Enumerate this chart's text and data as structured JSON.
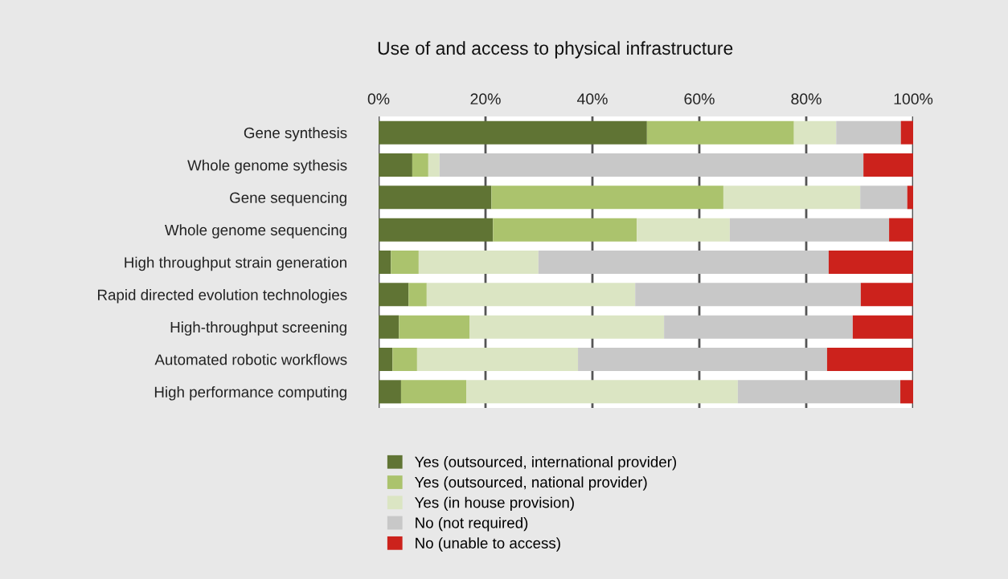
{
  "chart_data": {
    "type": "bar",
    "orientation": "horizontal",
    "stacked": true,
    "title": "Use of and access to physical infrastructure",
    "categories": [
      "Gene synthesis",
      "Whole genome sythesis",
      "Gene sequencing",
      "Whole genome sequencing",
      "High throughput strain generation",
      "Rapid directed evolution technologies",
      "High-throughput screening",
      "Automated robotic workflows",
      "High performance computing"
    ],
    "series": [
      {
        "name": "Yes (outsourced, international provider)",
        "color": "#607434",
        "values": [
          50.2,
          6.3,
          21.1,
          21.4,
          2.3,
          5.6,
          3.8,
          2.6,
          4.2
        ]
      },
      {
        "name": "Yes (outsourced, national provider)",
        "color": "#abc36d",
        "values": [
          27.5,
          3.0,
          43.4,
          26.9,
          5.2,
          3.4,
          13.2,
          4.6,
          12.2
        ]
      },
      {
        "name": "Yes (in house provision)",
        "color": "#dbe5c3",
        "values": [
          7.9,
          2.1,
          25.6,
          17.4,
          22.4,
          39.0,
          36.4,
          30.1,
          50.8
        ]
      },
      {
        "name": "No (not required)",
        "color": "#c8c8c8",
        "values": [
          12.1,
          79.3,
          8.8,
          29.8,
          54.3,
          42.2,
          35.3,
          46.6,
          30.4
        ]
      },
      {
        "name": "No (unable to access)",
        "color": "#cc221c",
        "values": [
          2.3,
          9.3,
          1.1,
          4.5,
          15.8,
          9.8,
          11.3,
          16.1,
          2.4
        ]
      }
    ],
    "xlim": [
      0,
      100
    ],
    "xticks": [
      {
        "value": 0,
        "label": "0%"
      },
      {
        "value": 20,
        "label": "20%"
      },
      {
        "value": 40,
        "label": "40%"
      },
      {
        "value": 60,
        "label": "60%"
      },
      {
        "value": 80,
        "label": "80%"
      },
      {
        "value": 100,
        "label": "100%"
      }
    ],
    "grid": "x",
    "legend": "bottom"
  }
}
